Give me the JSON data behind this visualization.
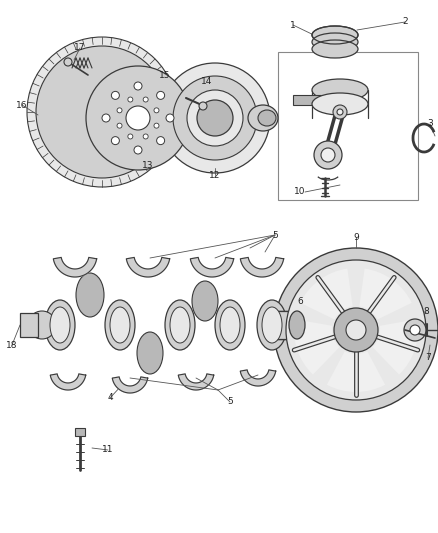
{
  "fig_width": 4.38,
  "fig_height": 5.33,
  "dpi": 100,
  "bg": "#ffffff",
  "lc": "#3a3a3a",
  "lc2": "#666666",
  "gray1": "#e8e8e8",
  "gray2": "#d0d0d0",
  "gray3": "#b8b8b8",
  "gray4": "#f0f0f0"
}
